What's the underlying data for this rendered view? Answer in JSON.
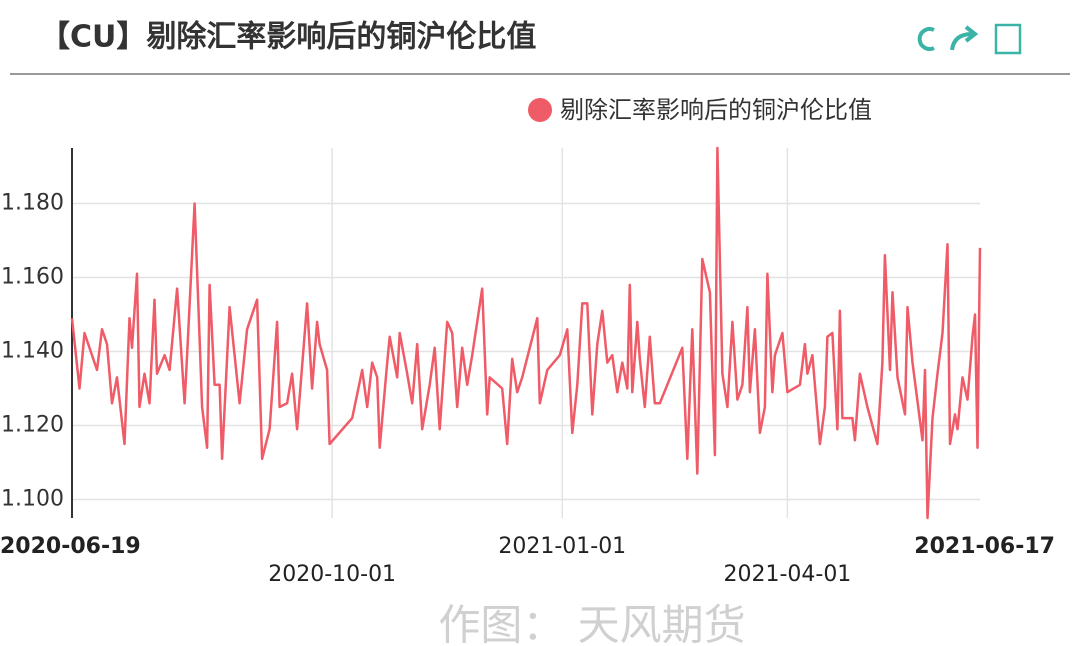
{
  "chart_data": {
    "type": "line",
    "title": "【CU】剔除汇率影响后的铜沪伦比值",
    "watermark": "作图： 天风期货",
    "x": [
      "2020-06-19",
      "2020-06-22",
      "2020-06-24",
      "2020-06-29",
      "2020-07-01",
      "2020-07-03",
      "2020-07-05",
      "2020-07-07",
      "2020-07-10",
      "2020-07-12",
      "2020-07-13",
      "2020-07-15",
      "2020-07-16",
      "2020-07-18",
      "2020-07-20",
      "2020-07-22",
      "2020-07-23",
      "2020-07-26",
      "2020-07-28",
      "2020-07-31",
      "2020-08-03",
      "2020-08-04",
      "2020-08-07",
      "2020-08-10",
      "2020-08-12",
      "2020-08-13",
      "2020-08-15",
      "2020-08-17",
      "2020-08-18",
      "2020-08-21",
      "2020-08-25",
      "2020-08-28",
      "2020-09-01",
      "2020-09-03",
      "2020-09-06",
      "2020-09-09",
      "2020-09-10",
      "2020-09-13",
      "2020-09-15",
      "2020-09-17",
      "2020-09-21",
      "2020-09-23",
      "2020-09-25",
      "2020-09-26",
      "2020-09-29",
      "2020-09-30",
      "2020-10-09",
      "2020-10-13",
      "2020-10-15",
      "2020-10-17",
      "2020-10-19",
      "2020-10-20",
      "2020-10-23",
      "2020-10-24",
      "2020-10-27",
      "2020-10-28",
      "2020-10-31",
      "2020-11-02",
      "2020-11-04",
      "2020-11-06",
      "2020-11-09",
      "2020-11-11",
      "2020-11-13",
      "2020-11-16",
      "2020-11-18",
      "2020-11-20",
      "2020-11-22",
      "2020-11-24",
      "2020-11-26",
      "2020-11-30",
      "2020-12-02",
      "2020-12-03",
      "2020-12-08",
      "2020-12-10",
      "2020-12-12",
      "2020-12-14",
      "2020-12-16",
      "2020-12-22",
      "2020-12-23",
      "2020-12-26",
      "2020-12-31",
      "2021-01-03",
      "2021-01-05",
      "2021-01-07",
      "2021-01-09",
      "2021-01-11",
      "2021-01-13",
      "2021-01-15",
      "2021-01-17",
      "2021-01-19",
      "2021-01-21",
      "2021-01-23",
      "2021-01-25",
      "2021-01-27",
      "2021-01-28",
      "2021-01-29",
      "2021-01-31",
      "2021-02-01",
      "2021-02-03",
      "2021-02-05",
      "2021-02-07",
      "2021-02-09",
      "2021-02-18",
      "2021-02-20",
      "2021-02-22",
      "2021-02-24",
      "2021-02-26",
      "2021-03-01",
      "2021-03-03",
      "2021-03-04",
      "2021-03-06",
      "2021-03-08",
      "2021-03-10",
      "2021-03-12",
      "2021-03-14",
      "2021-03-16",
      "2021-03-17",
      "2021-03-19",
      "2021-03-21",
      "2021-03-23",
      "2021-03-24",
      "2021-03-26",
      "2021-03-27",
      "2021-03-30",
      "2021-04-01",
      "2021-04-06",
      "2021-04-08",
      "2021-04-09",
      "2021-04-11",
      "2021-04-12",
      "2021-04-14",
      "2021-04-16",
      "2021-04-17",
      "2021-04-19",
      "2021-04-21",
      "2021-04-22",
      "2021-04-23",
      "2021-04-27",
      "2021-04-28",
      "2021-04-30",
      "2021-05-03",
      "2021-05-07",
      "2021-05-09",
      "2021-05-10",
      "2021-05-12",
      "2021-05-13",
      "2021-05-15",
      "2021-05-18",
      "2021-05-19",
      "2021-05-21",
      "2021-05-25",
      "2021-05-26",
      "2021-05-27",
      "2021-05-29",
      "2021-05-31",
      "2021-06-02",
      "2021-06-04",
      "2021-06-05",
      "2021-06-07",
      "2021-06-08",
      "2021-06-10",
      "2021-06-12",
      "2021-06-14",
      "2021-06-15",
      "2021-06-16",
      "2021-06-17"
    ],
    "series": [
      {
        "name": "剔除汇率影响后的铜沪伦比值",
        "color": "#ef5b67",
        "values": [
          1.149,
          1.13,
          1.145,
          1.135,
          1.146,
          1.142,
          1.126,
          1.133,
          1.115,
          1.149,
          1.141,
          1.161,
          1.125,
          1.134,
          1.126,
          1.154,
          1.134,
          1.139,
          1.135,
          1.157,
          1.126,
          1.139,
          1.18,
          1.125,
          1.114,
          1.158,
          1.131,
          1.131,
          1.111,
          1.152,
          1.126,
          1.146,
          1.154,
          1.111,
          1.119,
          1.148,
          1.125,
          1.126,
          1.134,
          1.119,
          1.153,
          1.13,
          1.148,
          1.142,
          1.135,
          1.115,
          1.122,
          1.135,
          1.125,
          1.137,
          1.133,
          1.114,
          1.137,
          1.144,
          1.133,
          1.145,
          1.134,
          1.126,
          1.142,
          1.119,
          1.131,
          1.141,
          1.119,
          1.148,
          1.145,
          1.125,
          1.141,
          1.131,
          1.139,
          1.157,
          1.123,
          1.133,
          1.13,
          1.115,
          1.138,
          1.129,
          1.133,
          1.149,
          1.126,
          1.135,
          1.139,
          1.146,
          1.118,
          1.131,
          1.153,
          1.153,
          1.123,
          1.142,
          1.151,
          1.137,
          1.139,
          1.129,
          1.137,
          1.13,
          1.158,
          1.129,
          1.148,
          1.138,
          1.125,
          1.144,
          1.126,
          1.126,
          1.141,
          1.111,
          1.146,
          1.107,
          1.165,
          1.156,
          1.112,
          1.195,
          1.134,
          1.125,
          1.148,
          1.127,
          1.131,
          1.152,
          1.129,
          1.146,
          1.118,
          1.125,
          1.161,
          1.129,
          1.139,
          1.145,
          1.129,
          1.131,
          1.142,
          1.134,
          1.139,
          1.131,
          1.115,
          1.125,
          1.144,
          1.145,
          1.119,
          1.151,
          1.122,
          1.122,
          1.116,
          1.134,
          1.125,
          1.115,
          1.137,
          1.166,
          1.135,
          1.156,
          1.133,
          1.123,
          1.152,
          1.137,
          1.116,
          1.135,
          1.095,
          1.122,
          1.134,
          1.145,
          1.169,
          1.115,
          1.123,
          1.119,
          1.133,
          1.127,
          1.144,
          1.15,
          1.114,
          1.168
        ]
      }
    ],
    "xlim": [
      "2020-06-19",
      "2021-06-17"
    ],
    "xticks": [
      "2020-06-19",
      "2020-10-01",
      "2021-01-01",
      "2021-04-01",
      "2021-06-17"
    ],
    "ylim": [
      1.095,
      1.195
    ],
    "yticks": [
      {
        "value": 1.1,
        "label": "1.100"
      },
      {
        "value": 1.12,
        "label": "1.120"
      },
      {
        "value": 1.14,
        "label": "1.140"
      },
      {
        "value": 1.16,
        "label": "1.160"
      },
      {
        "value": 1.18,
        "label": "1.180"
      }
    ],
    "grid": true
  }
}
